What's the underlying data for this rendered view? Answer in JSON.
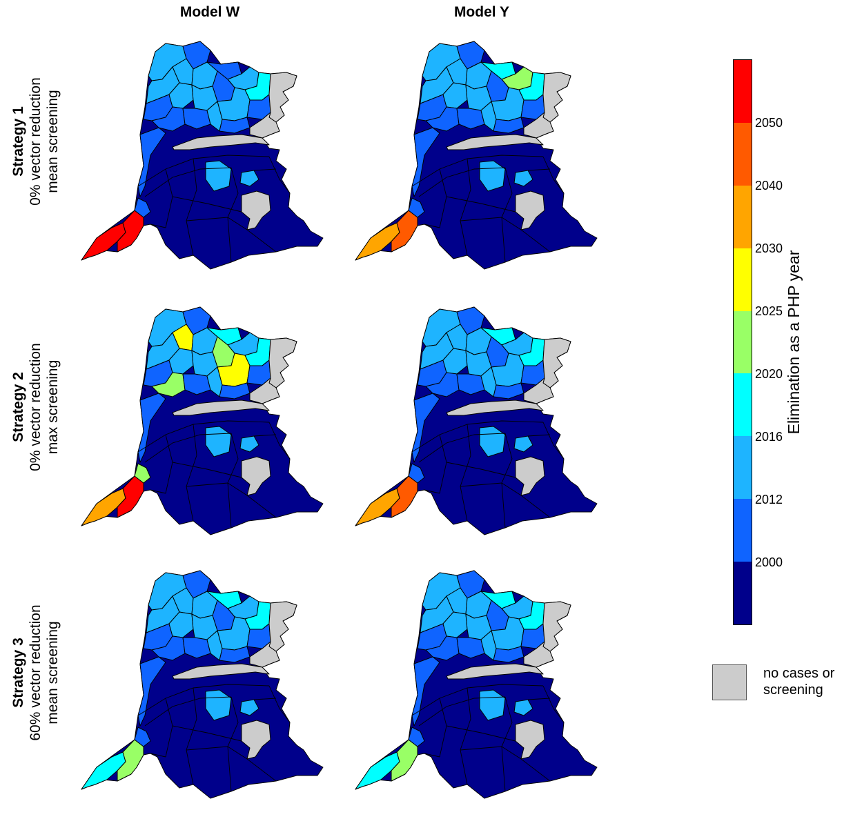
{
  "columns": [
    "Model W",
    "Model Y"
  ],
  "rows": [
    {
      "title": "Strategy 1",
      "line1": "0% vector reduction",
      "line2": "mean screening"
    },
    {
      "title": "Strategy 2",
      "line1": "0% vector reduction",
      "line2": "max screening"
    },
    {
      "title": "Strategy 3",
      "line1": "60% vector reduction",
      "line2": "mean screening"
    }
  ],
  "colorbar": {
    "title": "Elimination as a PHP year",
    "ticks": [
      "2050",
      "2040",
      "2030",
      "2025",
      "2020",
      "2016",
      "2012",
      "2000"
    ],
    "colors": [
      "#ff0000",
      "#ff5a00",
      "#ffa500",
      "#ffff00",
      "#99ff66",
      "#00ffff",
      "#1eb4ff",
      "#0f64ff",
      "#00008b"
    ]
  },
  "legend": {
    "no_cases_line1": "no cases or",
    "no_cases_line2": "screening",
    "no_cases_color": "#cccccc"
  },
  "maps": [
    {
      "model": "Model W",
      "strategy": "Strategy 1",
      "north": [
        "#1eb4ff",
        "#0f64ff",
        "#1eb4ff",
        "#0f64ff",
        "#00ffff",
        "#1eb4ff",
        "#0f64ff",
        "#1eb4ff"
      ],
      "east": "#1eb4ff",
      "sw_tip": "#ff0000",
      "sw_mid": "#ff0000",
      "sw_small": "#0f64ff"
    },
    {
      "model": "Model Y",
      "strategy": "Strategy 1",
      "north": [
        "#1eb4ff",
        "#0f64ff",
        "#99ff66",
        "#00ffff",
        "#00ffff",
        "#1eb4ff",
        "#0f64ff",
        "#1eb4ff"
      ],
      "east": "#1eb4ff",
      "sw_tip": "#ffa500",
      "sw_mid": "#ff5a00",
      "sw_small": "#0f64ff"
    },
    {
      "model": "Model W",
      "strategy": "Strategy 2",
      "north": [
        "#1eb4ff",
        "#0f64ff",
        "#1eb4ff",
        "#00ffff",
        "#00ffff",
        "#ffff00",
        "#99ff66",
        "#1eb4ff"
      ],
      "east": "#1eb4ff",
      "sw_tip": "#ffa500",
      "sw_mid": "#ff0000",
      "sw_small": "#99ff66"
    },
    {
      "model": "Model Y",
      "strategy": "Strategy 2",
      "north": [
        "#1eb4ff",
        "#0f64ff",
        "#1eb4ff",
        "#00ffff",
        "#00ffff",
        "#1eb4ff",
        "#0f64ff",
        "#1eb4ff"
      ],
      "east": "#1eb4ff",
      "sw_tip": "#ffa500",
      "sw_mid": "#ff5a00",
      "sw_small": "#0f64ff"
    },
    {
      "model": "Model W",
      "strategy": "Strategy 3",
      "north": [
        "#1eb4ff",
        "#0f64ff",
        "#1eb4ff",
        "#00ffff",
        "#00ffff",
        "#1eb4ff",
        "#0f64ff",
        "#1eb4ff"
      ],
      "east": "#1eb4ff",
      "sw_tip": "#00ffff",
      "sw_mid": "#99ff66",
      "sw_small": "#0f64ff"
    },
    {
      "model": "Model Y",
      "strategy": "Strategy 3",
      "north": [
        "#1eb4ff",
        "#0f64ff",
        "#1eb4ff",
        "#00ffff",
        "#00ffff",
        "#1eb4ff",
        "#0f64ff",
        "#1eb4ff"
      ],
      "east": "#1eb4ff",
      "sw_tip": "#00ffff",
      "sw_mid": "#99ff66",
      "sw_small": "#0f64ff"
    }
  ]
}
